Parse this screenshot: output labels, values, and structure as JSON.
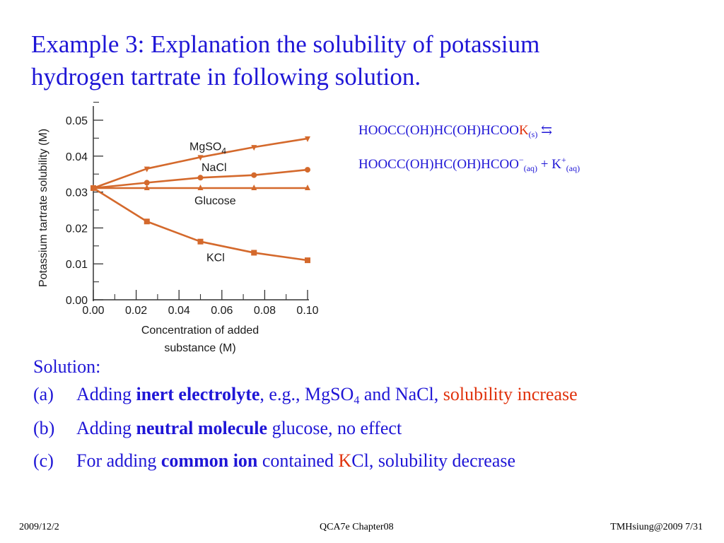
{
  "title": {
    "line1": "Example 3: Explanation the solubility of potassium",
    "line2": "hydrogen tartrate in following solution."
  },
  "equation": {
    "line1_main": "HOOCC(OH)HC(OH)HCOO",
    "line1_k": "K",
    "line1_sub": "(s)",
    "arrow": "⇆",
    "line2_main": "HOOCC(OH)HC(OH)HCOO",
    "line2_sup_minus": "−",
    "line2_sub_aq1": "(aq)",
    "line2_plus": " + K",
    "line2_sup_plus": "+",
    "line2_sub_aq2": "(aq)"
  },
  "solution": {
    "heading": "Solution:",
    "a_label": "(a)",
    "a_pre": "Adding ",
    "a_bold": "inert electrolyte",
    "a_mid": ", e.g., MgSO",
    "a_sub": "4",
    "a_post": " and NaCl, ",
    "a_red": "solubility increase",
    "b_label": "(b)",
    "b_pre": "Adding ",
    "b_bold": "neutral molecule",
    "b_post": " glucose, no effect",
    "c_label": "(c)",
    "c_pre": "For adding ",
    "c_bold": "common ion",
    "c_mid": " contained ",
    "c_red": "K",
    "c_post": "Cl, solubility decrease"
  },
  "footer": {
    "left": "2009/12/2",
    "center": "QCA7e Chapter08",
    "right": "TMHsiung@2009 7/31"
  },
  "colors": {
    "title_blue": "#1f16d6",
    "accent_red": "#e0320c",
    "series_orange": "#d4692c"
  },
  "chart_data": {
    "type": "line",
    "x": [
      0.0,
      0.025,
      0.05,
      0.075,
      0.1
    ],
    "xlim": [
      0.0,
      0.1
    ],
    "ylim": [
      0.0,
      0.05
    ],
    "xticks": [
      "0.00",
      "0.02",
      "0.04",
      "0.06",
      "0.08",
      "0.10"
    ],
    "yticks": [
      "0.00",
      "0.01",
      "0.02",
      "0.03",
      "0.04",
      "0.05"
    ],
    "xlabel_line1": "Concentration of added",
    "xlabel_line2": "substance (M)",
    "ylabel": "Potassium tartrate solubility (M)",
    "series": [
      {
        "name": "MgSO4",
        "label_main": "MgSO",
        "label_sub": "4",
        "marker": "triangle-down",
        "values": [
          0.0311,
          0.0365,
          0.0397,
          0.0425,
          0.0449
        ]
      },
      {
        "name": "NaCl",
        "marker": "circle",
        "values": [
          0.0311,
          0.0326,
          0.034,
          0.0347,
          0.0362
        ]
      },
      {
        "name": "Glucose",
        "marker": "triangle-up",
        "values": [
          0.0311,
          0.0311,
          0.0311,
          0.0311,
          0.0311
        ]
      },
      {
        "name": "KCl",
        "marker": "square",
        "values": [
          0.0311,
          0.0218,
          0.0162,
          0.0131,
          0.011
        ]
      }
    ]
  }
}
